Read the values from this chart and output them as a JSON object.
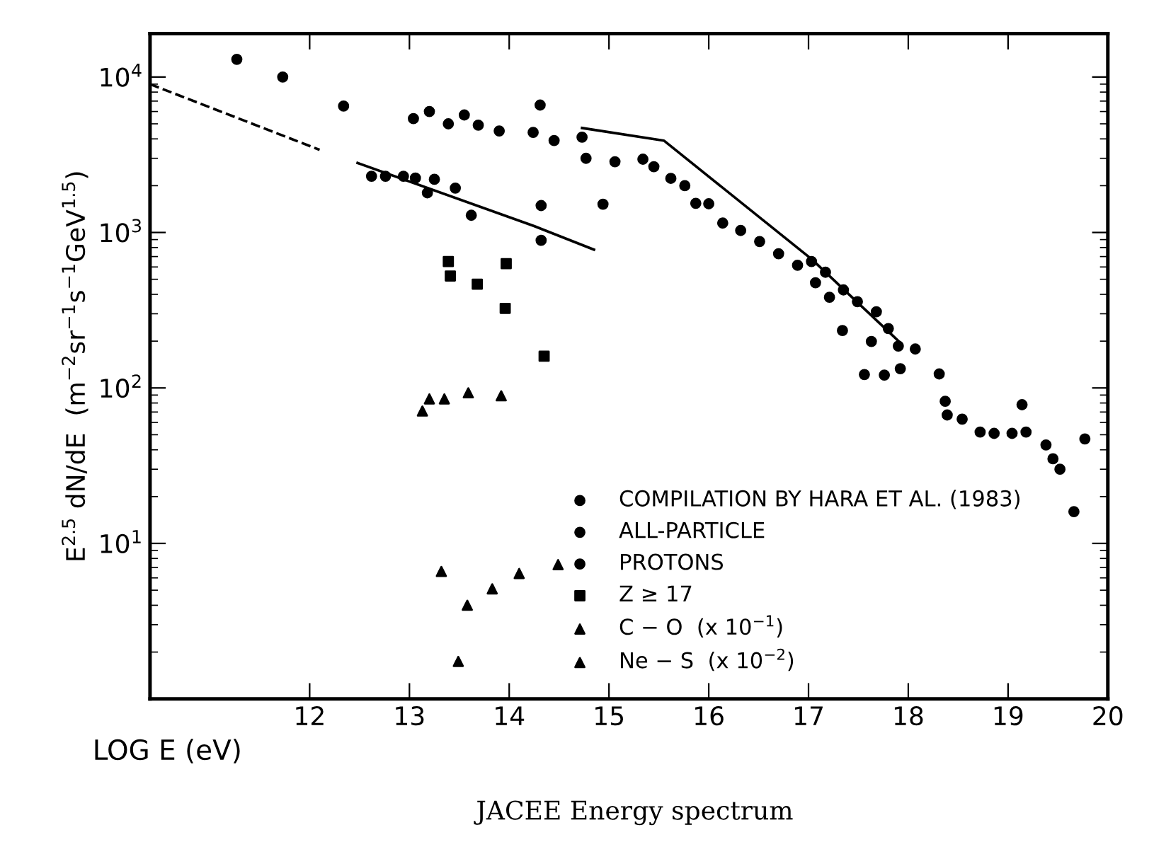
{
  "chart_data": {
    "type": "scatter",
    "ylabel": "E$^{2.5}$ dN/dE  (m$^{−2}$sr$^{−1}$s$^{−1}$GeV$^{1.5}$)",
    "xlabel": "LOG E (eV)",
    "annotations": [
      "JACEE Energy spectrum"
    ],
    "log": "y",
    "xlim": [
      10.4,
      20
    ],
    "ylim": [
      1,
      19000
    ],
    "xticks": [
      12,
      13,
      14,
      15,
      16,
      17,
      18,
      19,
      20
    ],
    "yticks": [
      {
        "value": 10,
        "label": "10$^{1}$"
      },
      {
        "value": 100,
        "label": "10$^{2}$"
      },
      {
        "value": 1000,
        "label": "10$^{3}$"
      },
      {
        "value": 10000,
        "label": "10$^{4}$"
      }
    ],
    "grid": false,
    "legend": "bottom right",
    "series": [
      {
        "name": "COMPILATION BY HARA ET AL. (1983)",
        "color": "#000000",
        "marker": "circle",
        "x": [
          11.27,
          11.73,
          12.34,
          17.03,
          17.17,
          17.35,
          17.49,
          17.68,
          17.8,
          17.9,
          18.07,
          17.92,
          18.37,
          18.39,
          18.54,
          18.72,
          18.86,
          19.04,
          19.18,
          19.14,
          19.38,
          19.45,
          19.52,
          19.66,
          19.77
        ],
        "values": [
          13000,
          10000,
          6500,
          650,
          555,
          427,
          359,
          309,
          241,
          186,
          178,
          133,
          82,
          67,
          63,
          52,
          51,
          51,
          52,
          78,
          43,
          35,
          30,
          16,
          47
        ]
      },
      {
        "name": "ALL-PARTICLE",
        "color": "#000000",
        "marker": "circle",
        "x": [
          13.04,
          13.2,
          13.39,
          13.55,
          13.69,
          13.9,
          14.24,
          14.31,
          14.45,
          14.73,
          14.77,
          15.06,
          15.34,
          15.45,
          15.62,
          15.76,
          15.87,
          16.0,
          16.14,
          16.32,
          16.51,
          16.7,
          16.89,
          17.07,
          17.21,
          17.34,
          17.63,
          17.76,
          17.56,
          18.31
        ],
        "values": [
          5400,
          6000,
          5000,
          5700,
          4900,
          4500,
          4400,
          6600,
          3900,
          4100,
          3000,
          2850,
          2960,
          2650,
          2230,
          2000,
          1540,
          1530,
          1150,
          1030,
          875,
          730,
          615,
          475,
          383,
          234,
          199,
          121,
          122,
          123
        ]
      },
      {
        "name": "PROTONS",
        "color": "#000000",
        "marker": "circle",
        "x": [
          12.62,
          12.76,
          12.94,
          13.06,
          13.25,
          13.18,
          13.46,
          13.62,
          14.32,
          14.94,
          14.32
        ],
        "values": [
          2300,
          2300,
          2300,
          2240,
          2200,
          1800,
          1930,
          1290,
          1490,
          1520,
          890
        ]
      },
      {
        "name": "Z ≥ 17",
        "color": "#000000",
        "marker": "square",
        "x": [
          13.39,
          13.41,
          13.68,
          13.97,
          13.96,
          14.35
        ],
        "values": [
          650,
          525,
          465,
          630,
          325,
          160
        ]
      },
      {
        "name": "C − O  (x 10$^{−1}$)",
        "color": "#000000",
        "marker": "triangle",
        "x": [
          13.13,
          13.2,
          13.35,
          13.59,
          13.92
        ],
        "values": [
          71,
          85,
          85,
          93,
          89
        ]
      },
      {
        "name": "Ne − S  (x 10$^{−2}$)",
        "color": "#000000",
        "marker": "triangle",
        "x": [
          13.32,
          13.58,
          13.83,
          14.1,
          14.49,
          13.49
        ],
        "values": [
          6.6,
          4.0,
          5.1,
          6.4,
          7.3,
          1.74
        ]
      },
      {
        "type": "line",
        "line_style": "dashed",
        "color": "#000000",
        "x": [
          10.4,
          12.1
        ],
        "values": [
          9000,
          3400
        ]
      },
      {
        "type": "line",
        "line_style": "solid",
        "color": "#000000",
        "x": [
          12.48,
          14.25,
          14.85
        ],
        "values": [
          2800,
          1100,
          775
        ]
      },
      {
        "type": "line",
        "line_style": "solid",
        "color": "#000000",
        "x": [
          14.73,
          15.55,
          17.03,
          17.92
        ],
        "values": [
          4700,
          3900,
          675,
          195
        ]
      }
    ]
  }
}
